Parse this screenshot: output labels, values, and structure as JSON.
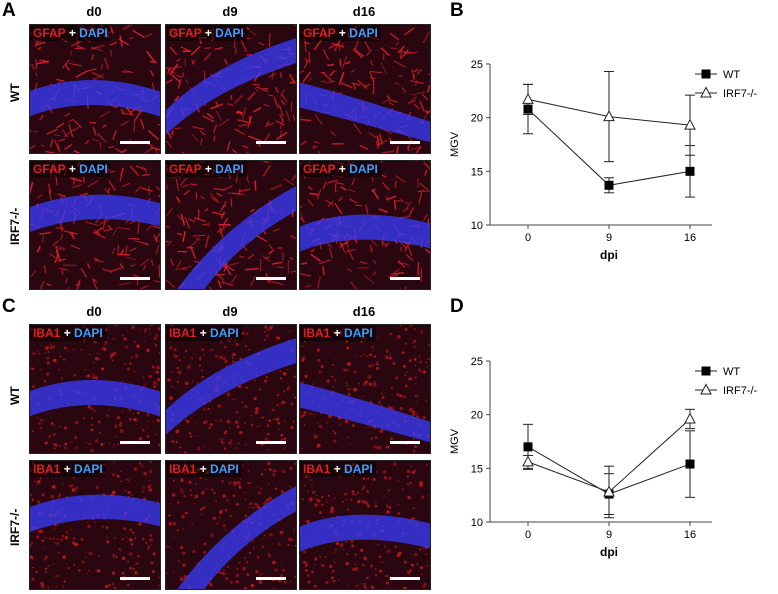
{
  "panels": {
    "A": "A",
    "B": "B",
    "C": "C",
    "D": "D"
  },
  "micrographs": {
    "columns": [
      "d0",
      "d9",
      "d16"
    ],
    "rows": [
      "WT",
      "IRF7-/-"
    ],
    "top": {
      "marker": "GFAP",
      "plus": "+",
      "counter": "DAPI"
    },
    "bottom": {
      "marker": "IBA1",
      "plus": "+",
      "counter": "DAPI"
    }
  },
  "colors": {
    "gfap": "#d8202a",
    "iba1": "#b01818",
    "dapi": "#3a3cff",
    "bg_dark": "#2a0710"
  },
  "chart_data": [
    {
      "panel": "B",
      "type": "line",
      "x": [
        0,
        9,
        16
      ],
      "xlabel": "dpi",
      "ylabel": "MGV",
      "ylim": [
        10,
        25
      ],
      "yticks": [
        10,
        15,
        20,
        25
      ],
      "legend_position": "top-right",
      "series": [
        {
          "name": "WT",
          "marker": "filled-square",
          "values": [
            20.8,
            13.7,
            15.0
          ],
          "err": [
            2.3,
            0.7,
            2.4
          ]
        },
        {
          "name": "IRF7-/-",
          "marker": "open-triangle",
          "values": [
            21.7,
            20.1,
            19.3
          ],
          "err": [
            1.4,
            4.2,
            2.8
          ]
        }
      ]
    },
    {
      "panel": "D",
      "type": "line",
      "x": [
        0,
        9,
        16
      ],
      "xlabel": "dpi",
      "ylabel": "MGV",
      "ylim": [
        10,
        25
      ],
      "yticks": [
        10,
        15,
        20,
        25
      ],
      "legend_position": "top-right",
      "series": [
        {
          "name": "WT",
          "marker": "filled-square",
          "values": [
            17.0,
            12.6,
            15.4
          ],
          "err": [
            2.1,
            1.9,
            3.1
          ]
        },
        {
          "name": "IRF7-/-",
          "marker": "open-triangle",
          "values": [
            15.6,
            12.8,
            19.6
          ],
          "err": [
            0.6,
            2.4,
            0.9
          ]
        }
      ]
    }
  ]
}
